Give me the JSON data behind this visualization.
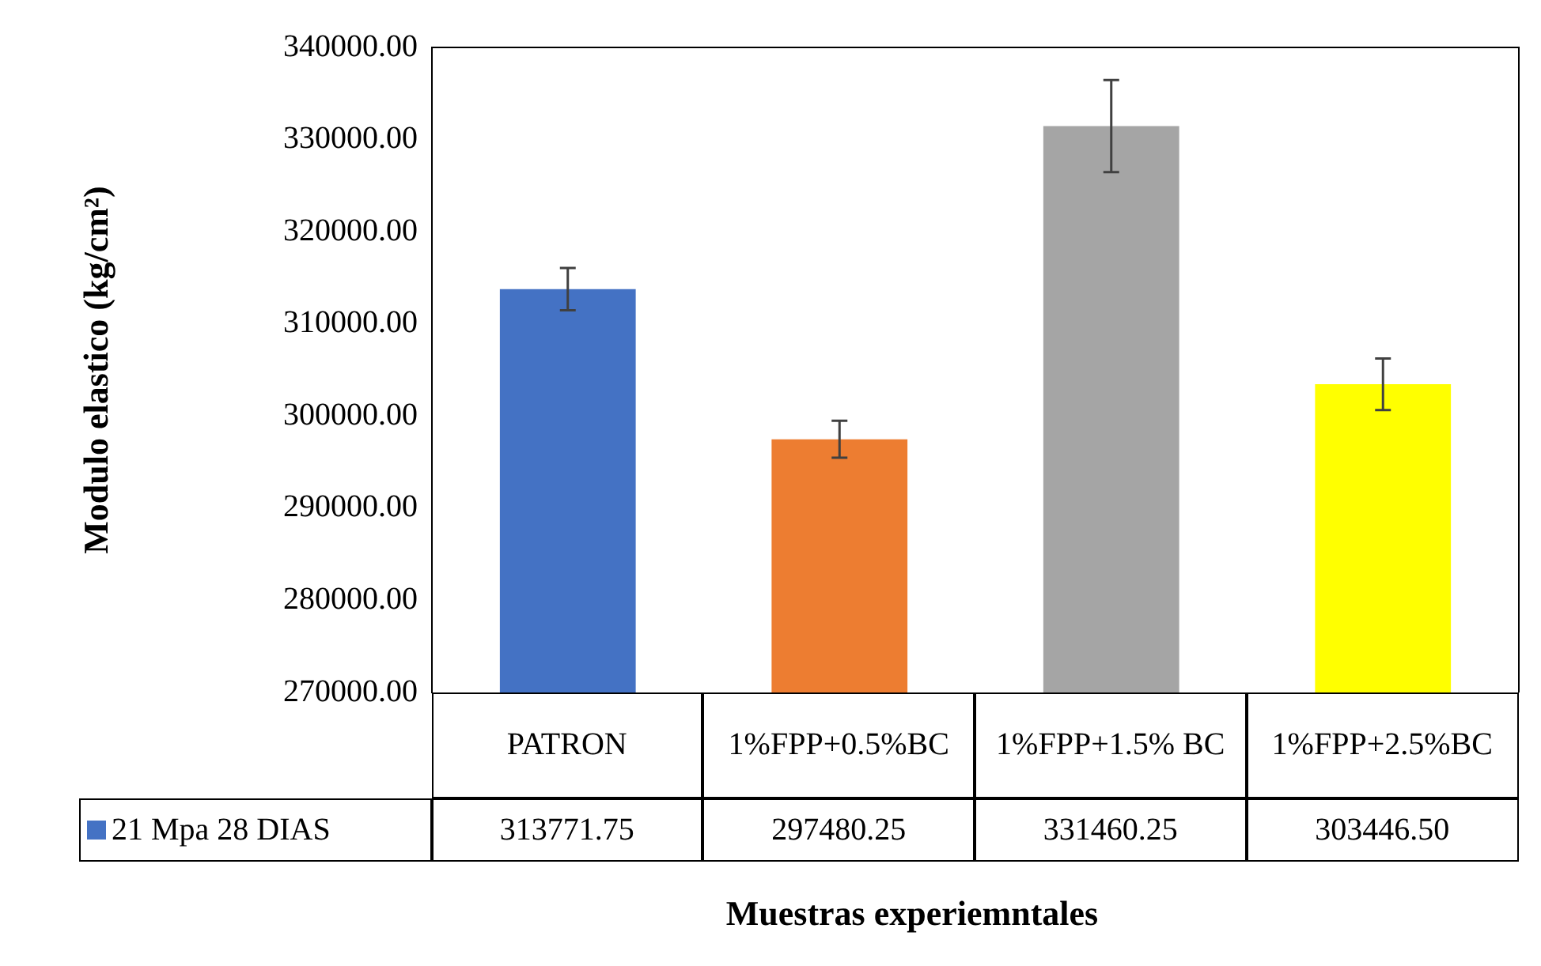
{
  "chart_data": {
    "type": "bar",
    "xlabel": "Muestras experiemntales",
    "ylabel": "Modulo elastico (kg/cm²)",
    "categories": [
      "PATRON",
      "1%FPP+0.5%BC",
      "1%FPP+1.5% BC",
      "1%FPP+2.5%BC"
    ],
    "series": [
      {
        "name": "21 Mpa 28 DIAS",
        "color": "#4472c4",
        "colors": [
          "#4472c4",
          "#ed7d31",
          "#a5a5a5",
          "#ffff00"
        ],
        "values": [
          313771.75,
          297480.25,
          331460.25,
          303446.5
        ],
        "errors": [
          2300,
          2000,
          5000,
          2800
        ],
        "value_labels": [
          "313771.75",
          "297480.25",
          "331460.25",
          "303446.50"
        ]
      }
    ],
    "ylim": [
      270000,
      340000
    ],
    "yticks": [
      {
        "value": 270000,
        "label": "270000.00"
      },
      {
        "value": 280000,
        "label": "280000.00"
      },
      {
        "value": 290000,
        "label": "290000.00"
      },
      {
        "value": 300000,
        "label": "300000.00"
      },
      {
        "value": 310000,
        "label": "310000.00"
      },
      {
        "value": 320000,
        "label": "320000.00"
      },
      {
        "value": 330000,
        "label": "330000.00"
      },
      {
        "value": 340000,
        "label": "340000.00"
      }
    ],
    "grid": false,
    "legend": "bottom left"
  }
}
